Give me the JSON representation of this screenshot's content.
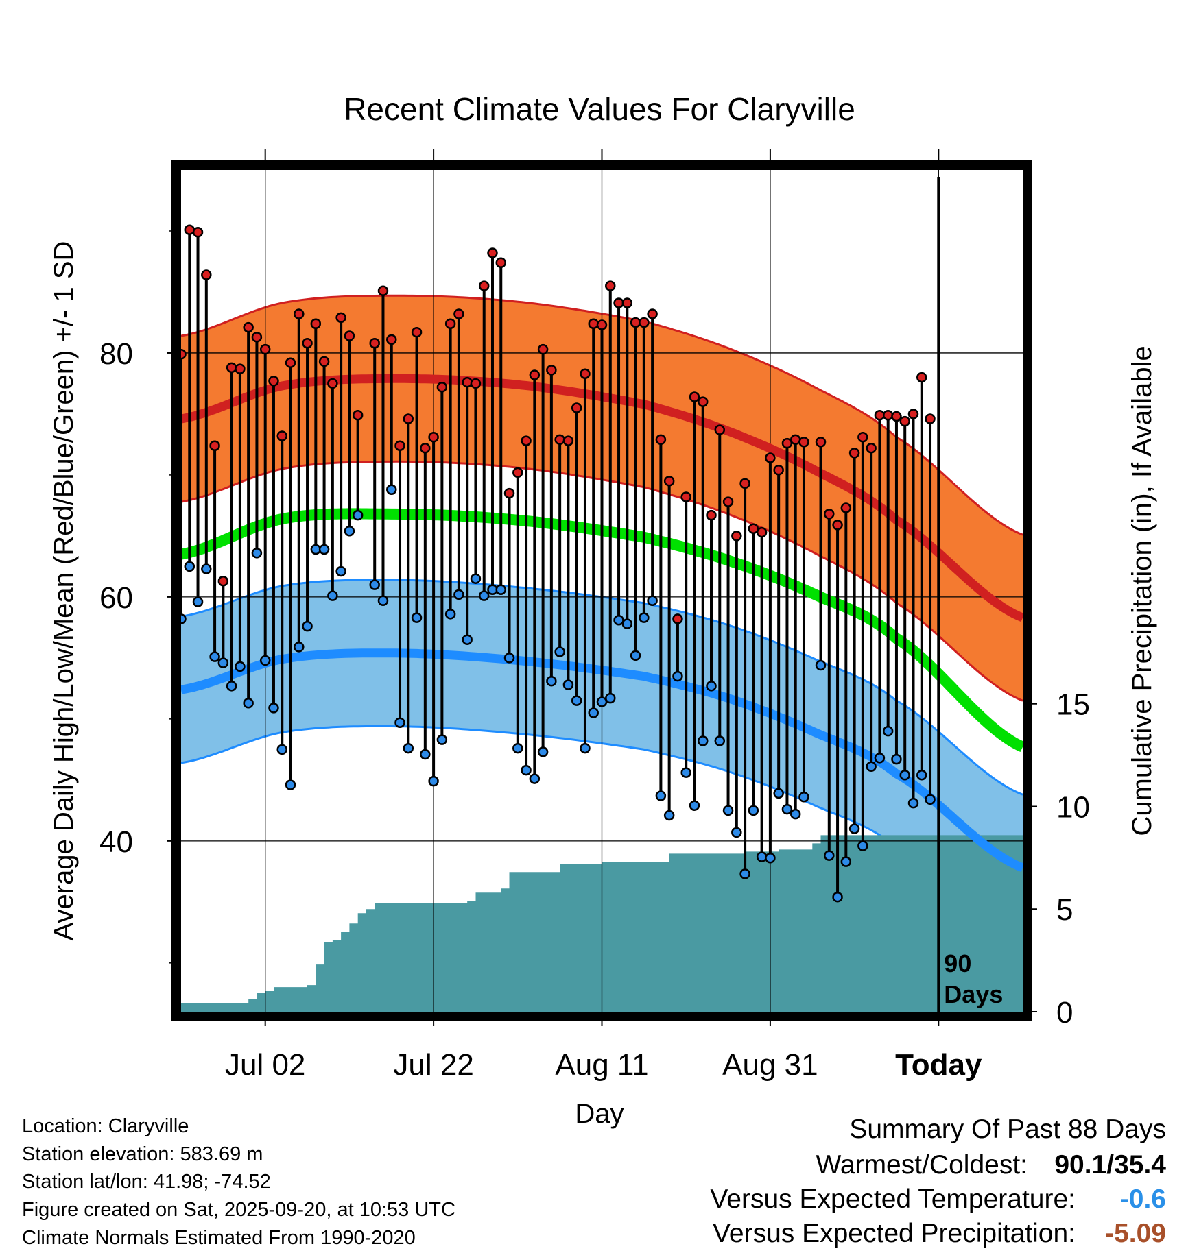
{
  "chart_data": {
    "type": "climate_timeseries",
    "title": "Recent Climate Values For Claryville",
    "xlabel": "Day",
    "ylabel_left": "Average Daily High/Low/Mean (Red/Blue/Green) +/- 1 SD",
    "ylabel_right": "Cumulative Precipitation (in), If Available",
    "x_ticks": [
      {
        "day": 10,
        "label": "Jul 02"
      },
      {
        "day": 30,
        "label": "Jul 22"
      },
      {
        "day": 50,
        "label": "Aug 11"
      },
      {
        "day": 70,
        "label": "Aug 31"
      },
      {
        "day": 90,
        "label": "Today"
      }
    ],
    "x_range_days": [
      0,
      100
    ],
    "today_day": 90,
    "today_marker_label_1": "90",
    "today_marker_label_2": "Days",
    "y_left_range": [
      26,
      95
    ],
    "y_left_ticks": [
      40,
      60,
      80
    ],
    "y_left_minor_ticks": [
      30,
      50,
      70,
      90
    ],
    "y_right_range": [
      0,
      41
    ],
    "y_right_ticks": [
      0,
      5,
      10,
      15
    ],
    "grid": true,
    "normal_high": {
      "color": "#d02020",
      "band_color": "#f47a30",
      "sd": 6.8,
      "points": [
        [
          0,
          74.6
        ],
        [
          12,
          77.3
        ],
        [
          25,
          77.9
        ],
        [
          40,
          77.4
        ],
        [
          55,
          75.8
        ],
        [
          65,
          73.6
        ],
        [
          75,
          70.5
        ],
        [
          85,
          66.3
        ],
        [
          100,
          58.3
        ]
      ]
    },
    "normal_mean": {
      "color": "#00e000",
      "points": [
        [
          0,
          63.5
        ],
        [
          12,
          66.4
        ],
        [
          25,
          66.8
        ],
        [
          40,
          66.3
        ],
        [
          55,
          64.9
        ],
        [
          65,
          63.0
        ],
        [
          75,
          60.3
        ],
        [
          85,
          56.6
        ],
        [
          100,
          47.7
        ]
      ]
    },
    "normal_low": {
      "color": "#1e8cff",
      "band_color": "#80c0e8",
      "sd": 6.0,
      "points": [
        [
          0,
          52.4
        ],
        [
          12,
          54.9
        ],
        [
          25,
          55.4
        ],
        [
          40,
          54.8
        ],
        [
          55,
          53.5
        ],
        [
          65,
          51.7
        ],
        [
          75,
          49.0
        ],
        [
          85,
          45.5
        ],
        [
          100,
          37.8
        ]
      ]
    },
    "daily": [
      {
        "day": 0,
        "high": 79.9,
        "low": 58.2
      },
      {
        "day": 1,
        "high": 90.1,
        "low": 62.5
      },
      {
        "day": 2,
        "high": 89.9,
        "low": 59.6
      },
      {
        "day": 3,
        "high": 86.4,
        "low": 62.3
      },
      {
        "day": 4,
        "high": 72.4,
        "low": 55.1
      },
      {
        "day": 5,
        "high": 61.3,
        "low": 54.6
      },
      {
        "day": 6,
        "high": 78.8,
        "low": 52.7
      },
      {
        "day": 7,
        "high": 78.7,
        "low": 54.3
      },
      {
        "day": 8,
        "high": 82.1,
        "low": 51.3
      },
      {
        "day": 9,
        "high": 81.3,
        "low": 63.6
      },
      {
        "day": 10,
        "high": 80.3,
        "low": 54.8
      },
      {
        "day": 11,
        "high": 77.7,
        "low": 50.9
      },
      {
        "day": 12,
        "high": 73.2,
        "low": 47.5
      },
      {
        "day": 13,
        "high": 79.2,
        "low": 44.6
      },
      {
        "day": 14,
        "high": 83.2,
        "low": 55.9
      },
      {
        "day": 15,
        "high": 80.8,
        "low": 57.6
      },
      {
        "day": 16,
        "high": 82.4,
        "low": 63.9
      },
      {
        "day": 17,
        "high": 79.3,
        "low": 63.9
      },
      {
        "day": 18,
        "high": 77.5,
        "low": 60.1
      },
      {
        "day": 19,
        "high": 82.9,
        "low": 62.1
      },
      {
        "day": 20,
        "high": 81.4,
        "low": 65.4
      },
      {
        "day": 21,
        "high": 74.9,
        "low": 66.7
      },
      {
        "day": 23,
        "high": 80.8,
        "low": 61.0
      },
      {
        "day": 24,
        "high": 85.1,
        "low": 59.7
      },
      {
        "day": 25,
        "high": 81.1,
        "low": 68.8
      },
      {
        "day": 26,
        "high": 72.4,
        "low": 49.7
      },
      {
        "day": 27,
        "high": 74.6,
        "low": 47.6
      },
      {
        "day": 28,
        "high": 81.7,
        "low": 58.3
      },
      {
        "day": 29,
        "high": 72.2,
        "low": 47.1
      },
      {
        "day": 30,
        "high": 73.1,
        "low": 44.9
      },
      {
        "day": 31,
        "high": 77.2,
        "low": 48.3
      },
      {
        "day": 32,
        "high": 82.4,
        "low": 58.6
      },
      {
        "day": 33,
        "high": 83.2,
        "low": 60.2
      },
      {
        "day": 34,
        "high": 77.6,
        "low": 56.5
      },
      {
        "day": 35,
        "high": 77.5,
        "low": 61.5
      },
      {
        "day": 36,
        "high": 85.5,
        "low": 60.1
      },
      {
        "day": 37,
        "high": 88.2,
        "low": 60.6
      },
      {
        "day": 38,
        "high": 87.4,
        "low": 60.6
      },
      {
        "day": 39,
        "high": 68.5,
        "low": 55.0
      },
      {
        "day": 40,
        "high": 70.2,
        "low": 47.6
      },
      {
        "day": 41,
        "high": 72.8,
        "low": 45.8
      },
      {
        "day": 42,
        "high": 78.2,
        "low": 45.1
      },
      {
        "day": 43,
        "high": 80.3,
        "low": 47.3
      },
      {
        "day": 44,
        "high": 78.6,
        "low": 53.1
      },
      {
        "day": 45,
        "high": 72.9,
        "low": 55.5
      },
      {
        "day": 46,
        "high": 72.8,
        "low": 52.8
      },
      {
        "day": 47,
        "high": 75.5,
        "low": 51.5
      },
      {
        "day": 48,
        "high": 78.3,
        "low": 47.6
      },
      {
        "day": 49,
        "high": 82.4,
        "low": 50.5
      },
      {
        "day": 50,
        "high": 82.3,
        "low": 51.4
      },
      {
        "day": 51,
        "high": 85.5,
        "low": 51.7
      },
      {
        "day": 52,
        "high": 84.1,
        "low": 58.1
      },
      {
        "day": 53,
        "high": 84.1,
        "low": 57.8
      },
      {
        "day": 54,
        "high": 82.5,
        "low": 55.2
      },
      {
        "day": 55,
        "high": 82.5,
        "low": 58.3
      },
      {
        "day": 56,
        "high": 83.2,
        "low": 59.7
      },
      {
        "day": 57,
        "high": 72.9,
        "low": 43.7
      },
      {
        "day": 58,
        "high": 69.5,
        "low": 42.1
      },
      {
        "day": 59,
        "high": 58.2,
        "low": 53.5
      },
      {
        "day": 60,
        "high": 68.2,
        "low": 45.6
      },
      {
        "day": 61,
        "high": 76.4,
        "low": 42.9
      },
      {
        "day": 62,
        "high": 76.0,
        "low": 48.2
      },
      {
        "day": 63,
        "high": 66.7,
        "low": 52.7
      },
      {
        "day": 64,
        "high": 73.7,
        "low": 48.2
      },
      {
        "day": 65,
        "high": 67.8,
        "low": 42.5
      },
      {
        "day": 66,
        "high": 65.0,
        "low": 40.7
      },
      {
        "day": 67,
        "high": 69.3,
        "low": 37.3
      },
      {
        "day": 68,
        "high": 65.6,
        "low": 42.5
      },
      {
        "day": 69,
        "high": 65.3,
        "low": 38.7
      },
      {
        "day": 70,
        "high": 71.4,
        "low": 38.6
      },
      {
        "day": 71,
        "high": 70.4,
        "low": 43.9
      },
      {
        "day": 72,
        "high": 72.6,
        "low": 42.6
      },
      {
        "day": 73,
        "high": 72.9,
        "low": 42.2
      },
      {
        "day": 74,
        "high": 72.7,
        "low": 43.6
      },
      {
        "day": 76,
        "high": 72.7,
        "low": 54.4
      },
      {
        "day": 77,
        "high": 66.8,
        "low": 38.8
      },
      {
        "day": 78,
        "high": 65.9,
        "low": 35.4
      },
      {
        "day": 79,
        "high": 67.3,
        "low": 38.3
      },
      {
        "day": 80,
        "high": 71.8,
        "low": 41.0
      },
      {
        "day": 81,
        "high": 73.1,
        "low": 39.6
      },
      {
        "day": 82,
        "high": 72.2,
        "low": 46.1
      },
      {
        "day": 83,
        "high": 74.9,
        "low": 46.8
      },
      {
        "day": 84,
        "high": 74.9,
        "low": 49.0
      },
      {
        "day": 85,
        "high": 74.8,
        "low": 46.7
      },
      {
        "day": 86,
        "high": 74.4,
        "low": 45.4
      },
      {
        "day": 87,
        "high": 75.0,
        "low": 43.1
      },
      {
        "day": 88,
        "high": 78.0,
        "low": 45.4
      },
      {
        "day": 89,
        "high": 74.6,
        "low": 43.4
      }
    ],
    "precip_cumulative": [
      [
        0,
        0.4
      ],
      [
        8,
        0.6
      ],
      [
        9,
        0.9
      ],
      [
        10,
        1.0
      ],
      [
        11,
        1.2
      ],
      [
        15,
        1.3
      ],
      [
        16,
        2.3
      ],
      [
        17,
        3.4
      ],
      [
        18,
        3.5
      ],
      [
        19,
        3.9
      ],
      [
        20,
        4.3
      ],
      [
        21,
        4.8
      ],
      [
        22,
        5.0
      ],
      [
        23,
        5.3
      ],
      [
        34,
        5.4
      ],
      [
        35,
        5.8
      ],
      [
        38,
        6.0
      ],
      [
        39,
        6.8
      ],
      [
        45,
        7.2
      ],
      [
        50,
        7.3
      ],
      [
        58,
        7.7
      ],
      [
        67,
        7.8
      ],
      [
        71,
        7.9
      ],
      [
        75,
        8.2
      ],
      [
        76,
        8.6
      ],
      [
        100,
        8.6
      ]
    ],
    "colors": {
      "high_dot": "#d82020",
      "low_dot": "#2d8ae8",
      "precip": "#4a9aa2",
      "vs_temp": "#2a90e8",
      "vs_precip": "#a8502a"
    }
  },
  "info": {
    "location": "Location: Claryville",
    "elevation": "Station elevation: 583.69 m",
    "latlon": "Station lat/lon: 41.98; -74.52",
    "created": "Figure created on Sat, 2025-09-20, at 10:53 UTC",
    "normals": "Climate Normals Estimated From 1990-2020"
  },
  "summary": {
    "title": "Summary Of Past 88 Days",
    "warm_cold_label": "Warmest/Coldest:",
    "warm_cold_value": "90.1/35.4",
    "vs_temp_label": "Versus Expected Temperature:",
    "vs_temp_value": "-0.6",
    "vs_precip_label": "Versus Expected Precipitation:",
    "vs_precip_value": "-5.09"
  }
}
